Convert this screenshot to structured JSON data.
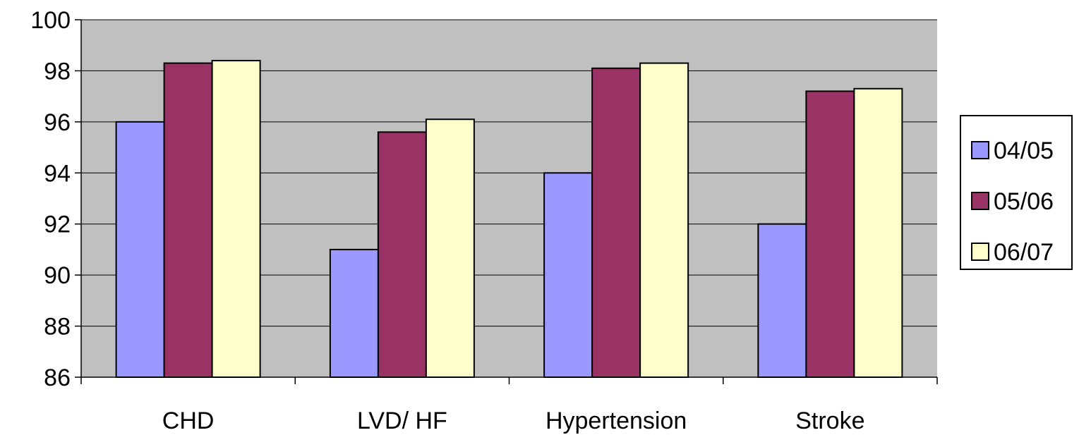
{
  "chart_data": {
    "type": "bar",
    "categories": [
      "CHD",
      "LVD/ HF",
      "Hypertension",
      "Stroke"
    ],
    "series": [
      {
        "name": "04/05",
        "values": [
          96.0,
          91.0,
          94.0,
          92.0
        ],
        "color": "#9999ff"
      },
      {
        "name": "05/06",
        "values": [
          98.3,
          95.6,
          98.1,
          97.2
        ],
        "color": "#993366"
      },
      {
        "name": "06/07",
        "values": [
          98.4,
          96.1,
          98.3,
          97.3
        ],
        "color": "#ffffcc"
      }
    ],
    "ylim": [
      86,
      100
    ],
    "yticks": [
      86,
      88,
      90,
      92,
      94,
      96,
      98,
      100
    ],
    "plot_background": "#c0c0c0",
    "grid": true,
    "legend_position": "right"
  }
}
